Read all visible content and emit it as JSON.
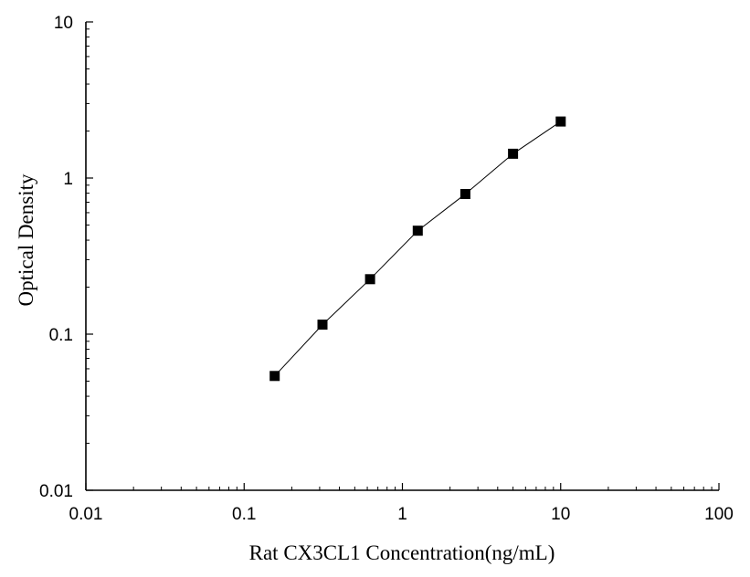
{
  "chart_data": {
    "type": "scatter",
    "title": "",
    "xlabel": "Rat CX3CL1 Concentration(ng/mL)",
    "ylabel": "Optical Density",
    "x_scale": "log",
    "y_scale": "log",
    "xlim": [
      0.01,
      100
    ],
    "ylim": [
      0.01,
      10
    ],
    "x_ticks": [
      "0.01",
      "0.1",
      "1",
      "10",
      "100"
    ],
    "y_ticks": [
      "0.01",
      "0.1",
      "1",
      "10"
    ],
    "grid": false,
    "legend": "none",
    "marker": "filled-square",
    "connect_points": true,
    "colors": {
      "marker": "#000000",
      "line": "#000000",
      "axis": "#000000"
    },
    "series": [
      {
        "x": [
          0.156,
          0.3125,
          0.625,
          1.25,
          2.5,
          5,
          10
        ],
        "y": [
          0.054,
          0.115,
          0.225,
          0.46,
          0.79,
          1.43,
          2.3
        ]
      }
    ]
  }
}
